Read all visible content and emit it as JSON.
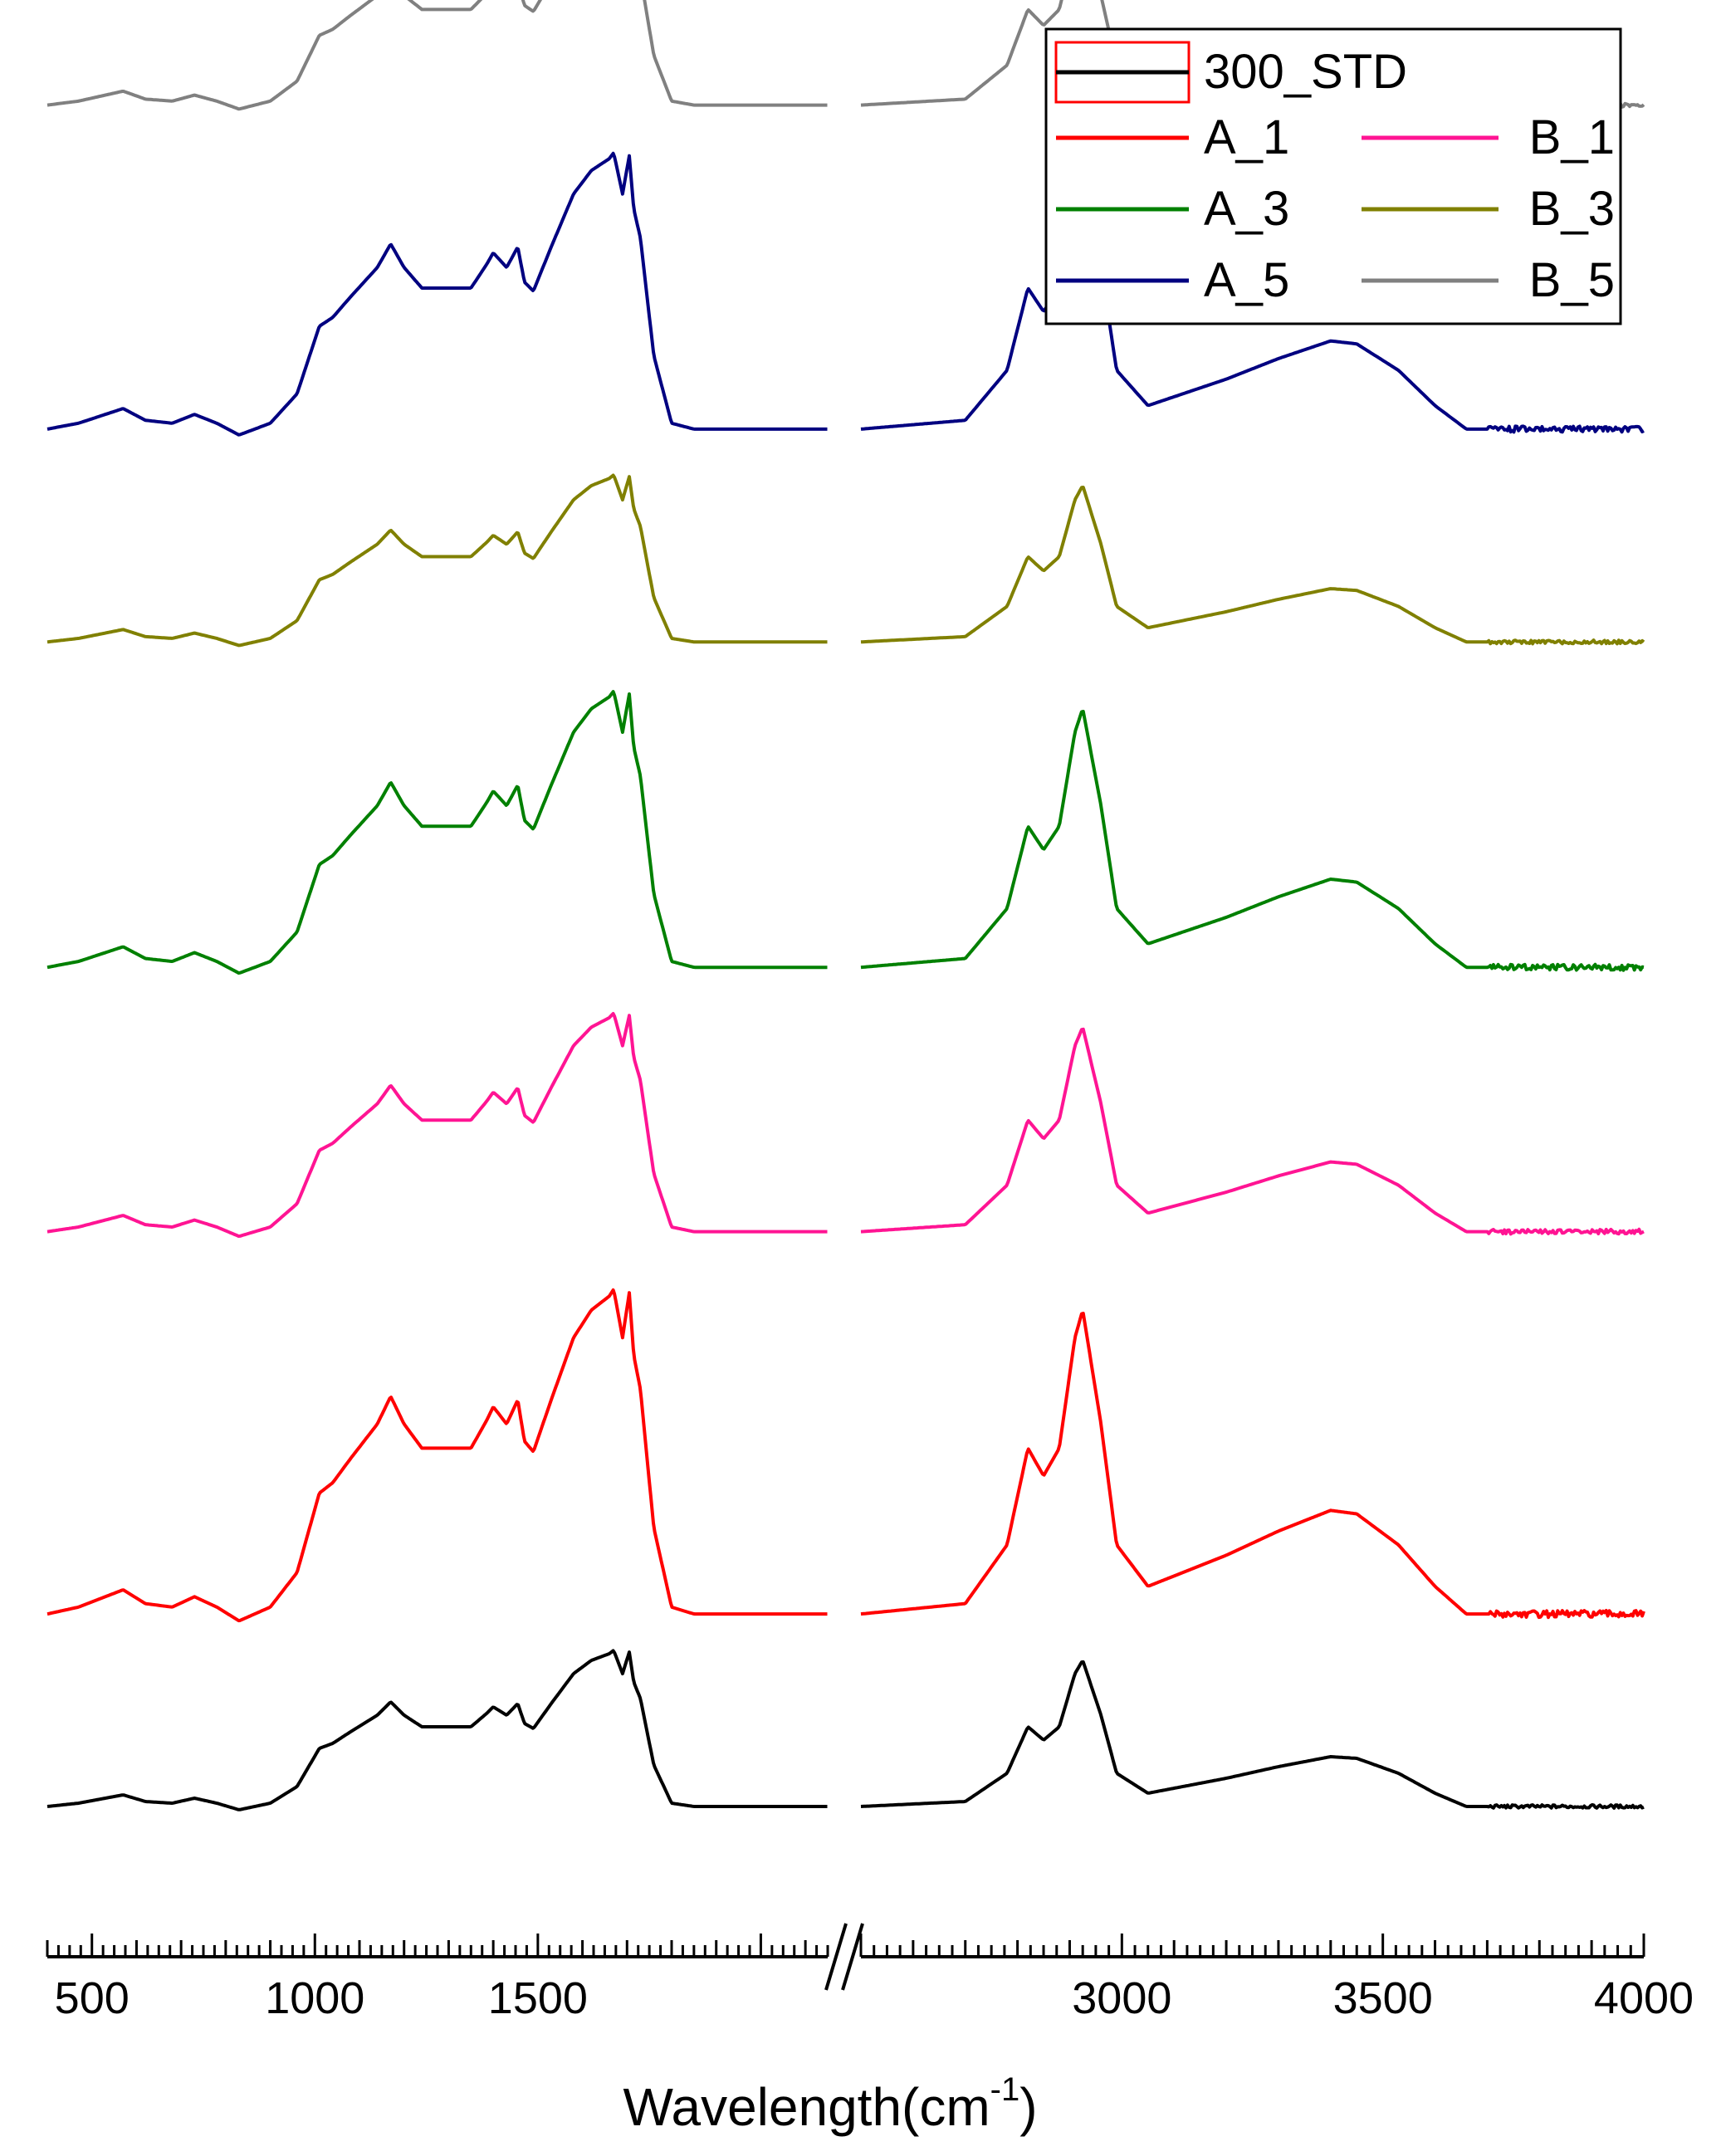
{
  "chart_data": {
    "type": "line",
    "title": "",
    "xlabel": "Wavelength(cm",
    "xlabel_superscript": "-1",
    "xlabel_suffix": ")",
    "ylabel": "",
    "grid": false,
    "stacked_offset": true,
    "axis_break": {
      "from": 2150,
      "to": 2500
    },
    "segments": [
      {
        "xlim": [
          400,
          2150
        ],
        "ticks": [
          500,
          1000,
          1500
        ]
      },
      {
        "xlim": [
          2500,
          4000
        ],
        "ticks": [
          3000,
          3500,
          4000
        ]
      }
    ],
    "x_tick_labels": [
      "500",
      "1000",
      "1500",
      "3000",
      "3500",
      "4000"
    ],
    "legend": {
      "position": "top-right",
      "entries": [
        "300_STD",
        "A_1",
        "B_1",
        "A_3",
        "B_3",
        "A_5",
        "B_5"
      ]
    },
    "series": [
      {
        "name": "300_STD",
        "color": "#000000",
        "scale": 1.0,
        "baseline_frac": 0.0
      },
      {
        "name": "A_1",
        "color": "#FF0000",
        "scale": 2.08,
        "baseline_frac": 0.142
      },
      {
        "name": "B_1",
        "color": "#FF1493",
        "scale": 1.4,
        "baseline_frac": 0.424
      },
      {
        "name": "A_3",
        "color": "#008000",
        "scale": 1.77,
        "baseline_frac": 0.619
      },
      {
        "name": "B_3",
        "color": "#808000",
        "scale": 1.07,
        "baseline_frac": 0.859
      },
      {
        "name": "A_5",
        "color": "#000080",
        "scale": 1.77,
        "baseline_frac": 1.016
      },
      {
        "name": "B_5",
        "color": "#808080",
        "scale": 1.2,
        "baseline_frac": 1.255
      }
    ],
    "base_profile": {
      "x": [
        400,
        470,
        570,
        620,
        680,
        730,
        780,
        830,
        900,
        960,
        1010,
        1040,
        1080,
        1140,
        1170,
        1200,
        1240,
        1300,
        1350,
        1385,
        1400,
        1430,
        1455,
        1470,
        1490,
        1530,
        1580,
        1620,
        1660,
        1670,
        1690,
        1705,
        1715,
        1730,
        1760,
        1800,
        1850,
        2150,
        2500,
        2700,
        2780,
        2820,
        2850,
        2880,
        2910,
        2925,
        2960,
        2990,
        3050,
        3200,
        3300,
        3400,
        3450,
        3530,
        3600,
        3660,
        3720,
        3850,
        4000
      ],
      "y": [
        0,
        0.02,
        0.07,
        0.03,
        0.02,
        0.05,
        0.02,
        -0.02,
        0.02,
        0.12,
        0.35,
        0.38,
        0.45,
        0.55,
        0.63,
        0.55,
        0.48,
        0.48,
        0.48,
        0.56,
        0.6,
        0.55,
        0.62,
        0.5,
        0.47,
        0.62,
        0.8,
        0.88,
        0.92,
        0.94,
        0.8,
        0.93,
        0.75,
        0.65,
        0.25,
        0.02,
        0,
        0,
        0,
        0.03,
        0.2,
        0.48,
        0.4,
        0.48,
        0.8,
        0.88,
        0.55,
        0.2,
        0.08,
        0.17,
        0.24,
        0.3,
        0.29,
        0.2,
        0.08,
        0.0,
        0,
        0,
        0
      ]
    }
  }
}
